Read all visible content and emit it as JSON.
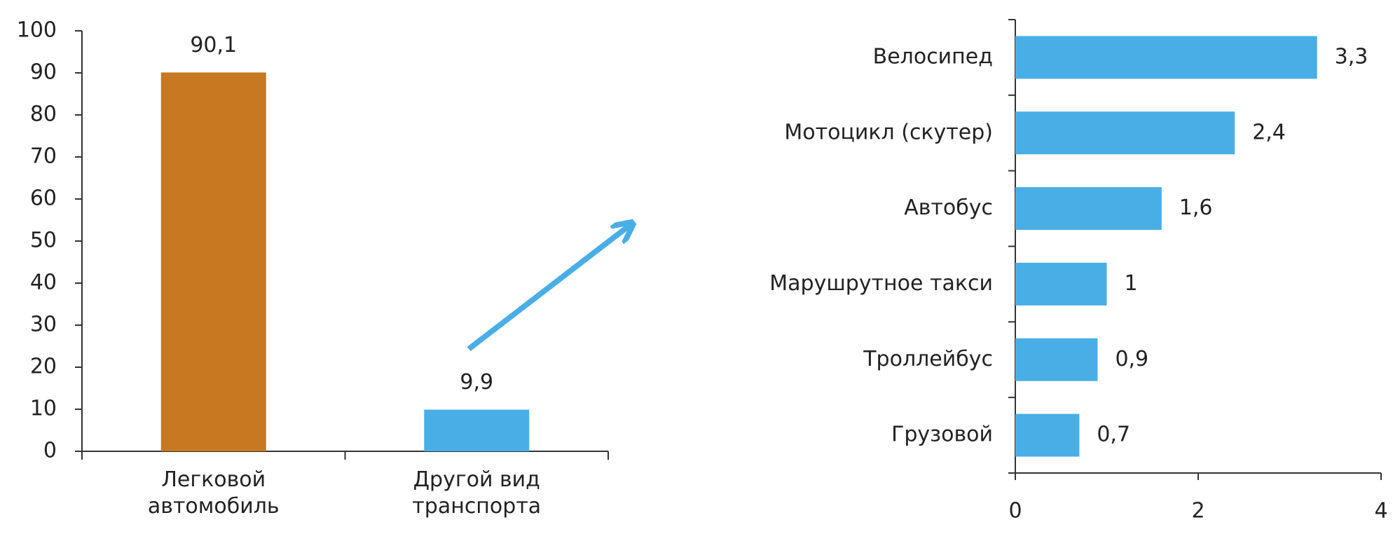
{
  "chart_data": [
    {
      "type": "bar",
      "categories": [
        "Легковой автомобиль",
        "Другой вид транспорта"
      ],
      "values": [
        90.1,
        9.9
      ],
      "value_labels": [
        "90,1",
        "9,9"
      ],
      "colors": [
        "#c87820",
        "#4aaee6"
      ],
      "ylim": [
        0,
        100
      ],
      "yticks": [
        0,
        10,
        20,
        30,
        40,
        50,
        60,
        70,
        80,
        90,
        100
      ]
    },
    {
      "type": "barh",
      "categories": [
        "Велосипед",
        "Мотоцикл (скутер)",
        "Автобус",
        "Марушрутное такси",
        "Троллейбус",
        "Грузовой"
      ],
      "values": [
        3.3,
        2.4,
        1.6,
        1,
        0.9,
        0.7
      ],
      "value_labels": [
        "3,3",
        "2,4",
        "1,6",
        "1",
        "0,9",
        "0,7"
      ],
      "color": "#4aaee6",
      "xlim": [
        0,
        4
      ],
      "xticks": [
        0,
        2,
        4
      ]
    }
  ]
}
